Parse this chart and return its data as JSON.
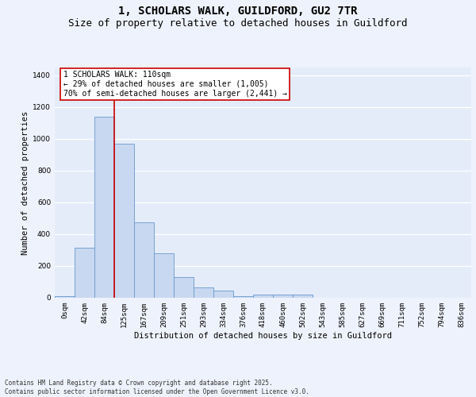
{
  "title1": "1, SCHOLARS WALK, GUILDFORD, GU2 7TR",
  "title2": "Size of property relative to detached houses in Guildford",
  "xlabel": "Distribution of detached houses by size in Guildford",
  "ylabel": "Number of detached properties",
  "categories": [
    "0sqm",
    "42sqm",
    "84sqm",
    "125sqm",
    "167sqm",
    "209sqm",
    "251sqm",
    "293sqm",
    "334sqm",
    "376sqm",
    "418sqm",
    "460sqm",
    "502sqm",
    "543sqm",
    "585sqm",
    "627sqm",
    "669sqm",
    "711sqm",
    "752sqm",
    "794sqm",
    "836sqm"
  ],
  "bar_heights": [
    8,
    315,
    1140,
    970,
    475,
    278,
    128,
    65,
    45,
    10,
    22,
    22,
    18,
    0,
    0,
    0,
    0,
    0,
    0,
    0,
    0
  ],
  "bar_color": "#c8d8f0",
  "bar_edge_color": "#6899cc",
  "vline_color": "#cc0000",
  "vline_x": 2.5,
  "annotation_text": "1 SCHOLARS WALK: 110sqm\n← 29% of detached houses are smaller (1,005)\n70% of semi-detached houses are larger (2,441) →",
  "annotation_box_edgecolor": "#cc0000",
  "ylim": [
    0,
    1450
  ],
  "yticks": [
    0,
    200,
    400,
    600,
    800,
    1000,
    1200,
    1400
  ],
  "bg_color": "#eef2fc",
  "plot_bg_color": "#e4ecfa",
  "grid_color": "#ffffff",
  "footer_line1": "Contains HM Land Registry data © Crown copyright and database right 2025.",
  "footer_line2": "Contains public sector information licensed under the Open Government Licence v3.0.",
  "title1_fontsize": 10,
  "title2_fontsize": 9,
  "axis_label_fontsize": 7.5,
  "tick_fontsize": 6.5,
  "annotation_fontsize": 7,
  "footer_fontsize": 5.5
}
